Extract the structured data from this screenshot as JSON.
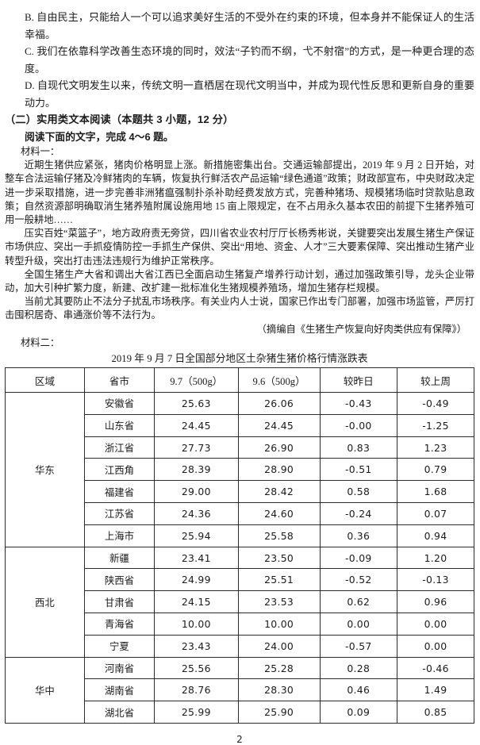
{
  "colors": {
    "text": "#1b1b1b",
    "background": "#ffffff",
    "table_border": "#2b2b2b"
  },
  "options": [
    "B. 自由民主，只能给人一个可以追求美好生活的不受外在约束的环境，但本身并不能保证人的生活幸福。",
    "C. 我们在依靠科学改善生态环境的同时，效法“子钓而不纲，弋不射宿”的方式，是一种更合理的态度。",
    "D. 自现代文明发生以来，传统文明一直栖居在现代文明当中，并成为现代性反思和更新自身的重要动力。"
  ],
  "section": {
    "heading": "（二）实用类文本阅读（本题共 3 小题，12 分）",
    "instruction": "阅读下面的文字，完成 4～6 题。"
  },
  "material1": {
    "label": "材料一：",
    "paragraphs": [
      "近期生猪供应紧张，猪肉价格明显上涨。新措施密集出台。交通运输部提出，2019 年 9 月 2 日开始，对整车合法运输仔猪及冷鲜猪肉的车辆，恢复执行鲜活农产品运输“绿色通道”政策；财政部宣布，中央财政决定进一步采取措施，进一步完善非洲猪瘟强制扑杀补助经费发放方式，完善种猪场、规模猪场临时贷款贴息政策；自然资源部明确取消生猪养殖附属设施用地 15 亩上限规定，在不占用永久基本农田的前提下生猪养殖可用一般耕地……",
      "压实百姓“菜篮子”，地方政府责无旁贷，四川省农业农村厅厅长杨秀彬说，关键要突出发展生猪生产保证市场供应、突出一手抓疫情防控一手抓生产保供、突出“用地、资金、人才”三大要素保障、突出推动生猪产业转型升级，突出打击违法违规行为维护正常秩序。",
      "全国生猪生产大省和调出大省江西已全面启动生猪复产增养行动计划，通过加强政策引导，龙头企业带动，加大引种扩繁力度，新建、改扩建一批标准化生猪规模养殖场，增加生猪存栏规模。",
      "当前尤其要防止不法分子扰乱市场秩序。有关业内人士说，国家已作出专门部署，加强市场监管，严厉打击囤积居奇、串通涨价等不法行为。"
    ],
    "attribution": "（摘编自《生猪生产恢复向好肉类供应有保障》）"
  },
  "material2": {
    "label": "材料二："
  },
  "table": {
    "title": "2019 年 9 月 7 日全国部分地区土杂猪生猪价格行情涨跌表",
    "headers": [
      "区域",
      "省市",
      "9.7（500g）",
      "9.6（500g）",
      "较昨日",
      "较上周"
    ],
    "groups": [
      {
        "region": "华东",
        "rows": [
          [
            "安徽省",
            "25.63",
            "26.06",
            "-0.43",
            "-0.49"
          ],
          [
            "山东省",
            "24.45",
            "24.45",
            "-0.00",
            "-1.25"
          ],
          [
            "浙江省",
            "27.73",
            "26.90",
            "0.83",
            "1.23"
          ],
          [
            "江西角",
            "28.39",
            "28.90",
            "-0.51",
            "0.79"
          ],
          [
            "福建省",
            "29.00",
            "28.42",
            "0.58",
            "1.68"
          ],
          [
            "江苏省",
            "24.36",
            "24.60",
            "-0.24",
            "0.07"
          ],
          [
            "上海市",
            "25.94",
            "25.58",
            "0.36",
            "0.94"
          ]
        ]
      },
      {
        "region": "西北",
        "rows": [
          [
            "新疆",
            "23.41",
            "23.50",
            "-0.09",
            "1.20"
          ],
          [
            "陕西省",
            "24.99",
            "25.51",
            "-0.52",
            "-0.13"
          ],
          [
            "甘肃省",
            "24.15",
            "23.53",
            "0.62",
            "0.96"
          ],
          [
            "青海省",
            "10.00",
            "10.00",
            "0.00",
            "0.00"
          ],
          [
            "宁夏",
            "23.43",
            "24.00",
            "-0.57",
            "0.00"
          ]
        ]
      },
      {
        "region": "华中",
        "rows": [
          [
            "河南省",
            "25.56",
            "25.28",
            "0.28",
            "-0.46"
          ],
          [
            "湖南省",
            "28.76",
            "28.30",
            "0.46",
            "1.49"
          ],
          [
            "湖北省",
            "25.99",
            "25.90",
            "0.09",
            "0.85"
          ]
        ]
      }
    ]
  },
  "footer": {
    "page_number": "2"
  }
}
